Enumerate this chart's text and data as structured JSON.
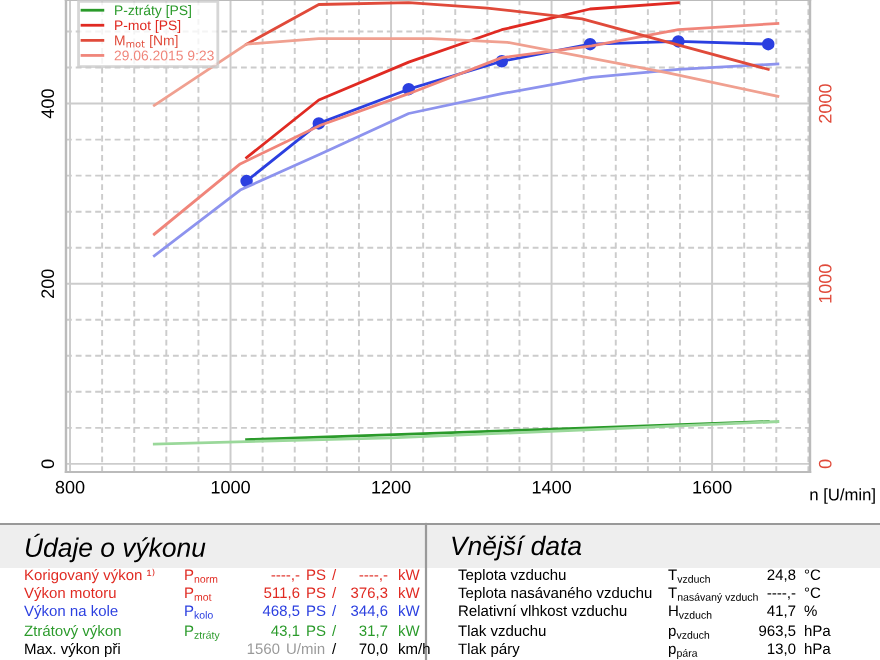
{
  "chart_data": {
    "type": "line",
    "xlabel": "n [U/min]",
    "xlim": [
      795,
      1722
    ],
    "xticks": [
      800,
      {
        "value": 840,
        "label": null
      },
      {
        "value": 880,
        "label": null
      },
      {
        "value": 920,
        "label": null
      },
      {
        "value": 960,
        "label": null
      },
      1000,
      {
        "value": 1040,
        "label": null
      },
      {
        "value": 1080,
        "label": null
      },
      {
        "value": 1120,
        "label": null
      },
      {
        "value": 1160,
        "label": null
      },
      1200,
      {
        "value": 1240,
        "label": null
      },
      {
        "value": 1280,
        "label": null
      },
      {
        "value": 1320,
        "label": null
      },
      {
        "value": 1360,
        "label": null
      },
      1400,
      {
        "value": 1440,
        "label": null
      },
      {
        "value": 1480,
        "label": null
      },
      {
        "value": 1520,
        "label": null
      },
      {
        "value": 1560,
        "label": null
      },
      1600,
      {
        "value": 1640,
        "label": null
      },
      {
        "value": 1680,
        "label": null
      },
      {
        "value": 1720,
        "label": null
      }
    ],
    "ylim": [
      -9,
      515
    ],
    "yticks": [
      0,
      {
        "value": 40,
        "label": null
      },
      {
        "value": 80,
        "label": null
      },
      {
        "value": 120,
        "label": null
      },
      {
        "value": 160,
        "label": null
      },
      200,
      {
        "value": 240,
        "label": null
      },
      {
        "value": 280,
        "label": null
      },
      {
        "value": 320,
        "label": null
      },
      {
        "value": 360,
        "label": null
      },
      400,
      {
        "value": 440,
        "label": null
      },
      {
        "value": 480,
        "label": null
      }
    ],
    "y2lim": [
      -45,
      2575
    ],
    "y2ticks": [
      0,
      1000,
      2000
    ],
    "grid": true,
    "legend": "top left",
    "series": [
      {
        "color": "#2b3fe0",
        "marker": "circle",
        "x": [
          1020,
          1110,
          1222,
          1338,
          1448,
          1558,
          1670
        ],
        "values": [
          314,
          378,
          416,
          447,
          466,
          469,
          466
        ]
      },
      {
        "color": "#8d93ee",
        "x": [
          905,
          1012,
          1112,
          1222,
          1338,
          1450,
          1558,
          1682
        ],
        "values": [
          231,
          304,
          344,
          389,
          411,
          429,
          438,
          444
        ]
      },
      {
        "name": "P-ztráty [PS]",
        "color": "#2a9a2a",
        "x": [
          1020,
          1222,
          1448,
          1670
        ],
        "values": [
          27,
          33,
          40,
          47
        ]
      },
      {
        "color": "#9ad89a",
        "x": [
          905,
          1200,
          1450,
          1682
        ],
        "values": [
          22,
          29,
          38,
          47
        ]
      },
      {
        "name": "P-mot [PS]",
        "color": "#e02a22",
        "x": [
          1020,
          1110,
          1222,
          1338,
          1448,
          1558
        ],
        "values": [
          340,
          404,
          446,
          482,
          505,
          512
        ]
      },
      {
        "name": "M$_{mot}$ [Nm]",
        "color": "#e04a3a",
        "axis": "y2",
        "x": [
          1020,
          1110,
          1222,
          1320,
          1438,
          1670
        ],
        "values": [
          2330,
          2550,
          2560,
          2530,
          2470,
          2190
        ]
      },
      {
        "name": "29.06.2015 9:23",
        "color": "#f0857a",
        "x": [
          905,
          1012,
          1112,
          1222,
          1338,
          1450,
          1558,
          1682
        ],
        "values": [
          255,
          333,
          376,
          411,
          451,
          464,
          482,
          489
        ]
      },
      {
        "color": "#f0a090",
        "axis": "y2",
        "x": [
          905,
          1020,
          1110,
          1250,
          1345,
          1545,
          1682
        ],
        "values": [
          1990,
          2330,
          2360,
          2360,
          2340,
          2170,
          2040
        ]
      }
    ],
    "annotations": [
      "Údaje o výkonu",
      "Vnější data",
      "Korigovaný výkon ¹⁾",
      "P$_{norm}$",
      "----,-",
      "PS",
      "/",
      "----,-",
      "kW",
      "Výkon motoru",
      "P$_{mot}$",
      "511,6",
      "PS",
      "/",
      "376,3",
      "kW",
      "Výkon na kole",
      "P$_{kolo}$",
      "468,5",
      "PS",
      "/",
      "344,6",
      "kW",
      "Ztrátový výkon",
      "P$_{ztráty}$",
      "43,1",
      "PS",
      "/",
      "31,7",
      "kW",
      "Max. výkon při",
      "1560",
      "U/min",
      "/",
      "70,0",
      "km/h",
      "Teplota vzduchu",
      "T$_{vzduch}$",
      "24,8",
      "°C",
      "Teplota nasávaného vzduchu",
      "T$_{nasávaný vzduch}$",
      "----,-",
      "°C",
      "Relativní vlhkost vzduchu",
      "H$_{vzduch}$",
      "41,7",
      "%",
      "Tlak vzduchu",
      "p$_{vzduch}$",
      "963,5",
      "hPa",
      "Tlak páry",
      "p$_{pára}$",
      "13,0",
      "hPa"
    ]
  }
}
